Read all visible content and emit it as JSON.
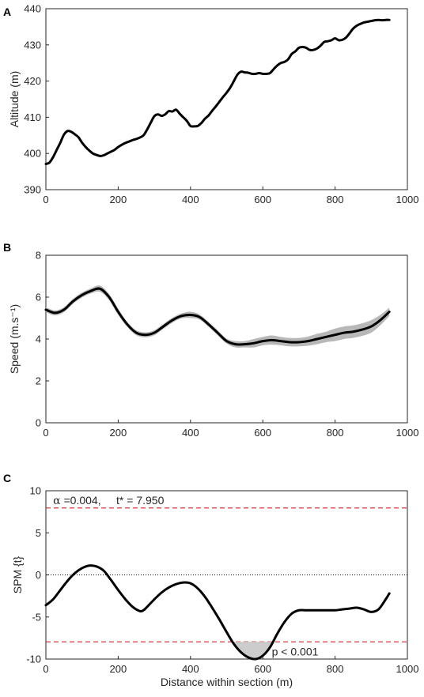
{
  "chart_data": [
    {
      "panel": "A",
      "type": "line",
      "xlabel": "",
      "ylabel": "Altitude (m)",
      "xlim": [
        0,
        1000
      ],
      "ylim": [
        390,
        440
      ],
      "xticks": [
        0,
        200,
        400,
        600,
        800,
        1000
      ],
      "yticks": [
        390,
        400,
        410,
        420,
        430,
        440
      ],
      "grid": false,
      "series": [
        {
          "color": "#000000",
          "x": [
            0,
            10,
            20,
            30,
            40,
            50,
            60,
            70,
            80,
            90,
            100,
            110,
            120,
            130,
            140,
            150,
            160,
            170,
            180,
            190,
            200,
            210,
            220,
            230,
            240,
            250,
            260,
            270,
            280,
            290,
            300,
            310,
            320,
            330,
            340,
            350,
            360,
            370,
            380,
            390,
            400,
            410,
            420,
            430,
            440,
            450,
            460,
            470,
            480,
            490,
            500,
            510,
            520,
            530,
            540,
            550,
            560,
            570,
            580,
            590,
            600,
            610,
            620,
            630,
            640,
            650,
            660,
            670,
            680,
            690,
            700,
            710,
            720,
            730,
            740,
            750,
            760,
            770,
            780,
            790,
            800,
            810,
            820,
            830,
            840,
            850,
            860,
            870,
            880,
            890,
            900,
            910,
            920,
            930,
            940,
            950
          ],
          "y": [
            397.1,
            397.5,
            399.0,
            401.0,
            403.0,
            405.2,
            406.2,
            406.0,
            405.3,
            404.5,
            403.0,
            401.8,
            400.8,
            400.0,
            399.6,
            399.3,
            399.5,
            400.0,
            400.5,
            401.0,
            401.8,
            402.4,
            402.9,
            403.3,
            403.7,
            404.0,
            404.4,
            405.0,
            406.6,
            408.5,
            410.3,
            410.8,
            410.4,
            410.8,
            411.7,
            411.6,
            412.1,
            411.0,
            410.0,
            409.0,
            407.6,
            407.5,
            407.6,
            408.4,
            409.6,
            410.5,
            411.8,
            413.0,
            414.3,
            415.6,
            416.8,
            418.2,
            420.0,
            421.8,
            422.6,
            422.4,
            422.3,
            422.0,
            422.0,
            422.2,
            422.0,
            422.0,
            422.2,
            423.3,
            424.3,
            425.0,
            425.3,
            426.0,
            427.5,
            428.2,
            429.2,
            429.4,
            429.2,
            428.6,
            428.6,
            429.0,
            429.8,
            430.8,
            431.0,
            431.3,
            431.8,
            431.3,
            431.4,
            432.0,
            433.2,
            434.5,
            435.3,
            435.8,
            436.2,
            436.4,
            436.6,
            436.8,
            436.9,
            436.8,
            436.9,
            436.9
          ]
        }
      ]
    },
    {
      "panel": "B",
      "type": "line",
      "xlabel": "",
      "ylabel": "Speed (m.s⁻¹)",
      "xlim": [
        0,
        1000
      ],
      "ylim": [
        0,
        8
      ],
      "xticks": [
        0,
        200,
        400,
        600,
        800,
        1000
      ],
      "yticks": [
        0,
        2,
        4,
        6,
        8
      ],
      "grid": false,
      "band_color": "#b8b8b8",
      "series": [
        {
          "color": "#000000",
          "x": [
            0,
            25,
            50,
            75,
            100,
            125,
            150,
            175,
            200,
            225,
            250,
            275,
            300,
            325,
            350,
            375,
            400,
            425,
            450,
            475,
            500,
            525,
            550,
            575,
            600,
            625,
            650,
            675,
            700,
            725,
            750,
            775,
            800,
            825,
            850,
            875,
            900,
            925,
            950
          ],
          "y": [
            5.4,
            5.25,
            5.4,
            5.8,
            6.1,
            6.3,
            6.4,
            6.0,
            5.3,
            4.7,
            4.3,
            4.2,
            4.3,
            4.6,
            4.9,
            5.1,
            5.15,
            5.05,
            4.7,
            4.3,
            3.9,
            3.75,
            3.75,
            3.8,
            3.9,
            3.95,
            3.9,
            3.85,
            3.85,
            3.9,
            4.0,
            4.1,
            4.2,
            4.3,
            4.35,
            4.45,
            4.6,
            4.9,
            5.3
          ],
          "band_halfwidth": [
            0.12,
            0.12,
            0.12,
            0.12,
            0.12,
            0.12,
            0.15,
            0.15,
            0.15,
            0.12,
            0.12,
            0.12,
            0.12,
            0.12,
            0.12,
            0.12,
            0.15,
            0.12,
            0.12,
            0.12,
            0.12,
            0.15,
            0.15,
            0.2,
            0.2,
            0.22,
            0.2,
            0.2,
            0.2,
            0.22,
            0.25,
            0.25,
            0.3,
            0.3,
            0.3,
            0.3,
            0.3,
            0.25,
            0.2
          ]
        }
      ]
    },
    {
      "panel": "C",
      "type": "line",
      "xlabel": "Distance within section (m)",
      "ylabel": "SPM {t}",
      "xlim": [
        0,
        1000
      ],
      "ylim": [
        -10,
        10
      ],
      "xticks": [
        0,
        200,
        400,
        600,
        800,
        1000
      ],
      "yticks": [
        -10,
        -5,
        0,
        5,
        10
      ],
      "grid": false,
      "threshold": 7.95,
      "threshold_color": "#d0262d",
      "zero_line": 0,
      "annotations": [
        {
          "text_alpha": "α",
          "text_rest": " =0.004,     t* = 7.950",
          "color": "#d0262d",
          "x": 20,
          "y": 8.4
        },
        {
          "text": "p < 0.001",
          "color": "#000000",
          "x": 625,
          "y": -9.6
        }
      ],
      "series": [
        {
          "color": "#000000",
          "x": [
            0,
            20,
            40,
            60,
            80,
            100,
            120,
            140,
            160,
            180,
            200,
            220,
            240,
            260,
            270,
            280,
            300,
            320,
            340,
            360,
            380,
            400,
            420,
            440,
            460,
            480,
            500,
            520,
            540,
            560,
            580,
            600,
            620,
            640,
            660,
            680,
            700,
            720,
            740,
            760,
            780,
            800,
            820,
            840,
            860,
            880,
            900,
            920,
            940,
            950
          ],
          "y": [
            -3.6,
            -2.9,
            -1.8,
            -0.7,
            0.2,
            0.8,
            1.1,
            1.0,
            0.5,
            -0.6,
            -1.8,
            -2.9,
            -3.8,
            -4.3,
            -4.2,
            -3.8,
            -2.9,
            -2.1,
            -1.5,
            -1.1,
            -0.9,
            -1.0,
            -1.6,
            -2.6,
            -3.9,
            -5.3,
            -6.8,
            -8.2,
            -9.2,
            -9.8,
            -10.0,
            -9.6,
            -8.6,
            -7.0,
            -5.6,
            -4.6,
            -4.2,
            -4.2,
            -4.2,
            -4.2,
            -4.2,
            -4.2,
            -4.1,
            -4.0,
            -3.9,
            -4.1,
            -4.4,
            -4.1,
            -2.9,
            -2.2
          ]
        }
      ]
    }
  ]
}
